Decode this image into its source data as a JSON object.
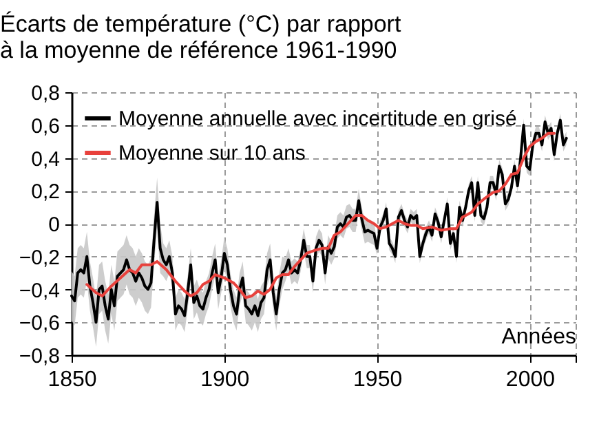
{
  "chart_data": {
    "type": "line",
    "title": "Écarts de température (°C) par rapport à la moyenne de référence 1961-1990",
    "xlabel": "Années",
    "xlim": [
      1850,
      2015
    ],
    "xticks": [
      1850,
      1900,
      1950,
      2000,
      {
        "value": 2015,
        "label": null
      }
    ],
    "ylim": [
      -0.8,
      0.8
    ],
    "yticks": [
      {
        "value": -0.8,
        "label": "−0,8"
      },
      {
        "value": -0.6,
        "label": "−0,6"
      },
      {
        "value": -0.4,
        "label": "−0,4"
      },
      {
        "value": -0.2,
        "label": "−0,2"
      },
      0,
      {
        "value": 0.2,
        "label": "0,2"
      },
      {
        "value": 0.4,
        "label": "0,4"
      },
      {
        "value": 0.6,
        "label": "0,6"
      },
      {
        "value": 0.8,
        "label": "0,8"
      }
    ],
    "grid": true,
    "legend": "top left",
    "line_style": "solid",
    "series": [
      {
        "name": "Moyenne annuelle avec incertitude en grisé",
        "color": "#000000",
        "x": [
          1850,
          1851,
          1852,
          1853,
          1854,
          1855,
          1856,
          1857,
          1858,
          1859,
          1860,
          1861,
          1862,
          1863,
          1864,
          1865,
          1866,
          1867,
          1868,
          1869,
          1870,
          1871,
          1872,
          1873,
          1874,
          1875,
          1876,
          1877,
          1878,
          1879,
          1880,
          1881,
          1882,
          1883,
          1884,
          1885,
          1886,
          1887,
          1888,
          1889,
          1890,
          1891,
          1892,
          1893,
          1894,
          1895,
          1896,
          1897,
          1898,
          1899,
          1900,
          1901,
          1902,
          1903,
          1904,
          1905,
          1906,
          1907,
          1908,
          1909,
          1910,
          1911,
          1912,
          1913,
          1914,
          1915,
          1916,
          1917,
          1918,
          1919,
          1920,
          1921,
          1922,
          1923,
          1924,
          1925,
          1926,
          1927,
          1928,
          1929,
          1930,
          1931,
          1932,
          1933,
          1934,
          1935,
          1936,
          1937,
          1938,
          1939,
          1940,
          1941,
          1942,
          1943,
          1944,
          1945,
          1946,
          1947,
          1948,
          1949,
          1950,
          1951,
          1952,
          1953,
          1954,
          1955,
          1956,
          1957,
          1958,
          1959,
          1960,
          1961,
          1962,
          1963,
          1964,
          1965,
          1966,
          1967,
          1968,
          1969,
          1970,
          1971,
          1972,
          1973,
          1974,
          1975,
          1976,
          1977,
          1978,
          1979,
          1980,
          1981,
          1982,
          1983,
          1984,
          1985,
          1986,
          1987,
          1988,
          1989,
          1990,
          1991,
          1992,
          1993,
          1994,
          1995,
          1996,
          1997,
          1998,
          1999,
          2000,
          2001,
          2002,
          2003,
          2004,
          2005,
          2006,
          2007,
          2008,
          2009,
          2010,
          2011,
          2012
        ],
        "values": [
          -0.44,
          -0.47,
          -0.3,
          -0.28,
          -0.3,
          -0.2,
          -0.38,
          -0.48,
          -0.6,
          -0.4,
          -0.38,
          -0.5,
          -0.58,
          -0.4,
          -0.5,
          -0.32,
          -0.3,
          -0.28,
          -0.22,
          -0.28,
          -0.3,
          -0.35,
          -0.3,
          -0.33,
          -0.38,
          -0.4,
          -0.36,
          -0.1,
          0.13,
          -0.15,
          -0.22,
          -0.25,
          -0.2,
          -0.3,
          -0.55,
          -0.5,
          -0.52,
          -0.56,
          -0.42,
          -0.25,
          -0.48,
          -0.44,
          -0.5,
          -0.52,
          -0.45,
          -0.4,
          -0.3,
          -0.22,
          -0.42,
          -0.32,
          -0.18,
          -0.25,
          -0.4,
          -0.5,
          -0.55,
          -0.4,
          -0.33,
          -0.5,
          -0.52,
          -0.55,
          -0.5,
          -0.56,
          -0.48,
          -0.45,
          -0.28,
          -0.22,
          -0.42,
          -0.55,
          -0.4,
          -0.3,
          -0.28,
          -0.22,
          -0.3,
          -0.28,
          -0.3,
          -0.22,
          -0.1,
          -0.2,
          -0.2,
          -0.35,
          -0.15,
          -0.1,
          -0.13,
          -0.3,
          -0.14,
          -0.18,
          -0.14,
          -0.02,
          0.0,
          -0.02,
          0.04,
          0.05,
          0.02,
          0.02,
          0.14,
          0.03,
          -0.05,
          -0.04,
          -0.05,
          -0.06,
          -0.15,
          -0.02,
          0.02,
          0.09,
          -0.12,
          -0.15,
          -0.2,
          0.04,
          0.08,
          0.02,
          -0.02,
          0.05,
          0.03,
          0.05,
          -0.2,
          -0.12,
          -0.06,
          -0.02,
          -0.07,
          0.06,
          0.01,
          -0.08,
          0.02,
          0.12,
          -0.12,
          -0.06,
          -0.2,
          0.1,
          0.02,
          0.1,
          0.2,
          0.25,
          0.05,
          0.25,
          0.05,
          0.03,
          0.1,
          0.25,
          0.25,
          0.18,
          0.35,
          0.3,
          0.12,
          0.15,
          0.22,
          0.35,
          0.23,
          0.4,
          0.6,
          0.35,
          0.33,
          0.48,
          0.55,
          0.55,
          0.48,
          0.62,
          0.55,
          0.58,
          0.42,
          0.55,
          0.63,
          0.48,
          0.52
        ],
        "lower": [
          -0.59,
          -0.62,
          -0.45,
          -0.43,
          -0.45,
          -0.35,
          -0.53,
          -0.63,
          -0.75,
          -0.55,
          -0.53,
          -0.65,
          -0.73,
          -0.55,
          -0.65,
          -0.47,
          -0.45,
          -0.43,
          -0.37,
          -0.43,
          -0.45,
          -0.5,
          -0.45,
          -0.48,
          -0.53,
          -0.55,
          -0.51,
          -0.25,
          -0.02,
          -0.3,
          -0.32,
          -0.35,
          -0.3,
          -0.4,
          -0.65,
          -0.6,
          -0.62,
          -0.66,
          -0.52,
          -0.35,
          -0.58,
          -0.54,
          -0.6,
          -0.62,
          -0.55,
          -0.5,
          -0.4,
          -0.32,
          -0.52,
          -0.42,
          -0.28,
          -0.35,
          -0.5,
          -0.6,
          -0.65,
          -0.5,
          -0.43,
          -0.6,
          -0.62,
          -0.65,
          -0.6,
          -0.66,
          -0.58,
          -0.55,
          -0.38,
          -0.32,
          -0.52,
          -0.65,
          -0.5,
          -0.4,
          -0.35,
          -0.29,
          -0.37,
          -0.35,
          -0.37,
          -0.29,
          -0.17,
          -0.27,
          -0.27,
          -0.42,
          -0.22,
          -0.17,
          -0.2,
          -0.37,
          -0.21,
          -0.25,
          -0.21,
          -0.09,
          -0.07,
          -0.09,
          -0.03,
          -0.02,
          -0.05,
          -0.05,
          0.07,
          -0.04,
          -0.12,
          -0.11,
          -0.12,
          -0.13,
          -0.19,
          -0.06,
          -0.02,
          0.05,
          -0.16,
          -0.19,
          -0.24,
          0.0,
          0.04,
          -0.02,
          -0.06,
          0.01,
          -0.01,
          0.01,
          -0.24,
          -0.16,
          -0.1,
          -0.06,
          -0.11,
          0.02,
          -0.03,
          -0.12,
          -0.02,
          0.08,
          -0.16,
          -0.1,
          -0.24,
          0.06,
          -0.02,
          0.06,
          0.16,
          0.21,
          0.01,
          0.21,
          0.01,
          -0.01,
          0.06,
          0.21,
          0.21,
          0.14,
          0.31,
          0.26,
          0.08,
          0.11,
          0.18,
          0.31,
          0.19,
          0.36,
          0.56,
          0.31,
          0.29,
          0.44,
          0.51,
          0.51,
          0.44,
          0.58,
          0.51,
          0.54,
          0.38,
          0.51,
          0.59,
          0.44,
          0.48
        ],
        "upper": [
          -0.29,
          -0.32,
          -0.15,
          -0.13,
          -0.15,
          -0.05,
          -0.23,
          -0.33,
          -0.45,
          -0.25,
          -0.23,
          -0.35,
          -0.43,
          -0.25,
          -0.35,
          -0.17,
          -0.15,
          -0.13,
          -0.07,
          -0.13,
          -0.15,
          -0.2,
          -0.15,
          -0.18,
          -0.23,
          -0.25,
          -0.21,
          0.05,
          0.28,
          0.0,
          -0.12,
          -0.15,
          -0.1,
          -0.2,
          -0.45,
          -0.4,
          -0.42,
          -0.46,
          -0.32,
          -0.15,
          -0.38,
          -0.34,
          -0.4,
          -0.42,
          -0.35,
          -0.3,
          -0.2,
          -0.12,
          -0.32,
          -0.22,
          -0.08,
          -0.15,
          -0.3,
          -0.4,
          -0.45,
          -0.3,
          -0.23,
          -0.4,
          -0.42,
          -0.45,
          -0.4,
          -0.46,
          -0.38,
          -0.35,
          -0.18,
          -0.12,
          -0.32,
          -0.45,
          -0.3,
          -0.2,
          -0.21,
          -0.15,
          -0.23,
          -0.21,
          -0.23,
          -0.15,
          -0.03,
          -0.13,
          -0.13,
          -0.28,
          -0.08,
          -0.03,
          -0.06,
          -0.23,
          -0.07,
          -0.11,
          -0.07,
          0.05,
          0.07,
          0.05,
          0.11,
          0.12,
          0.09,
          0.09,
          0.21,
          0.1,
          0.02,
          0.03,
          0.02,
          0.01,
          -0.11,
          0.02,
          0.06,
          0.13,
          -0.08,
          -0.11,
          -0.16,
          0.08,
          0.12,
          0.06,
          0.02,
          0.09,
          0.07,
          0.09,
          -0.16,
          -0.08,
          -0.02,
          0.02,
          -0.03,
          0.1,
          0.05,
          -0.04,
          0.06,
          0.16,
          -0.08,
          -0.02,
          -0.16,
          0.14,
          0.06,
          0.14,
          0.24,
          0.29,
          0.09,
          0.29,
          0.09,
          0.07,
          0.14,
          0.29,
          0.29,
          0.22,
          0.39,
          0.34,
          0.16,
          0.19,
          0.26,
          0.39,
          0.27,
          0.44,
          0.64,
          0.39,
          0.37,
          0.52,
          0.59,
          0.59,
          0.52,
          0.66,
          0.59,
          0.62,
          0.46,
          0.59,
          0.67,
          0.52,
          0.56
        ]
      },
      {
        "name": "Moyenne sur 10 ans",
        "color": "#e8413c",
        "x": [
          1855,
          1858,
          1860,
          1863,
          1866,
          1869,
          1871,
          1873,
          1876,
          1878,
          1881,
          1884,
          1887,
          1889,
          1891,
          1893,
          1895,
          1897,
          1900,
          1903,
          1905,
          1907,
          1909,
          1911,
          1913,
          1915,
          1917,
          1919,
          1921,
          1923,
          1925,
          1927,
          1930,
          1932,
          1934,
          1936,
          1938,
          1941,
          1943,
          1945,
          1947,
          1949,
          1951,
          1953,
          1955,
          1957,
          1959,
          1961,
          1963,
          1965,
          1968,
          1971,
          1974,
          1976,
          1978,
          1981,
          1983,
          1985,
          1988,
          1990,
          1992,
          1994,
          1996,
          1998,
          2000,
          2002,
          2004,
          2006,
          2008
        ],
        "values": [
          -0.37,
          -0.42,
          -0.44,
          -0.38,
          -0.33,
          -0.28,
          -0.3,
          -0.25,
          -0.25,
          -0.23,
          -0.28,
          -0.35,
          -0.41,
          -0.44,
          -0.42,
          -0.37,
          -0.35,
          -0.31,
          -0.33,
          -0.36,
          -0.4,
          -0.45,
          -0.44,
          -0.41,
          -0.43,
          -0.4,
          -0.33,
          -0.31,
          -0.31,
          -0.26,
          -0.22,
          -0.18,
          -0.16,
          -0.15,
          -0.15,
          -0.07,
          -0.05,
          0.01,
          0.05,
          0.05,
          0.02,
          0.0,
          -0.03,
          -0.02,
          0.0,
          0.02,
          0.0,
          -0.01,
          -0.01,
          -0.03,
          -0.02,
          -0.04,
          -0.03,
          -0.03,
          0.04,
          0.07,
          0.12,
          0.15,
          0.19,
          0.2,
          0.24,
          0.3,
          0.31,
          0.4,
          0.47,
          0.5,
          0.52,
          0.55,
          0.55
        ]
      }
    ]
  }
}
